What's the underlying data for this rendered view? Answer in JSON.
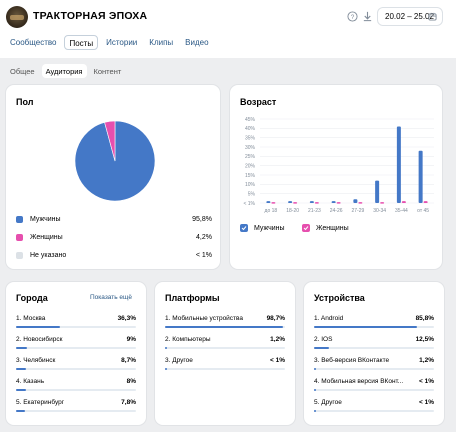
{
  "header": {
    "title": "ТРАКТОРНАЯ ЭПОХА",
    "date_range": "20.02 – 25.02",
    "icons": [
      "help-icon",
      "download-icon",
      "calendar-icon"
    ]
  },
  "tabs": [
    {
      "label": "Сообщество",
      "active": false
    },
    {
      "label": "Посты",
      "active": true
    },
    {
      "label": "Истории",
      "active": false
    },
    {
      "label": "Клипы",
      "active": false
    },
    {
      "label": "Видео",
      "active": false
    }
  ],
  "subtabs": [
    {
      "label": "Общее",
      "active": false
    },
    {
      "label": "Аудитория",
      "active": true
    },
    {
      "label": "Контент",
      "active": false
    }
  ],
  "gender": {
    "title": "Пол",
    "items": [
      {
        "label": "Мужчины",
        "value": "95,8%",
        "color": "#4478c7"
      },
      {
        "label": "Женщины",
        "value": "4,2%",
        "color": "#e64fae"
      },
      {
        "label": "Не указано",
        "value": "< 1%",
        "color": "#dce1e6"
      }
    ]
  },
  "age": {
    "title": "Возраст",
    "legend": [
      {
        "label": "Мужчины",
        "color": "#4478c7"
      },
      {
        "label": "Женщины",
        "color": "#e64fae"
      }
    ]
  },
  "chart_data": {
    "type": "bar",
    "categories": [
      "до 18",
      "18-20",
      "21-23",
      "24-26",
      "27-29",
      "30-34",
      "35-44",
      "от 45"
    ],
    "series": [
      {
        "name": "Мужчины",
        "values": [
          1,
          1,
          1,
          1,
          2,
          12,
          41,
          28
        ]
      },
      {
        "name": "Женщины",
        "values": [
          0.5,
          0.5,
          0.5,
          0.5,
          0.5,
          0.5,
          1,
          1
        ]
      }
    ],
    "y_ticks": [
      "45%",
      "40%",
      "35%",
      "30%",
      "25%",
      "20%",
      "15%",
      "10%",
      "5%",
      "< 1%"
    ],
    "ylim": [
      0,
      45
    ],
    "grid": true
  },
  "cities": {
    "title": "Города",
    "show_more": "Показать ещё",
    "items": [
      {
        "label": "1. Москва",
        "value": "36,3%",
        "pct": 36.3
      },
      {
        "label": "2. Новосибирск",
        "value": "9%",
        "pct": 9
      },
      {
        "label": "3. Челябинск",
        "value": "8,7%",
        "pct": 8.7
      },
      {
        "label": "4. Казань",
        "value": "8%",
        "pct": 8
      },
      {
        "label": "5. Екатеринбург",
        "value": "7,8%",
        "pct": 7.8
      }
    ]
  },
  "platforms": {
    "title": "Платформы",
    "items": [
      {
        "label": "1. Мобильные устройства",
        "value": "98,7%",
        "pct": 98.7
      },
      {
        "label": "2. Компьютеры",
        "value": "1,2%",
        "pct": 1.2
      },
      {
        "label": "3. Другое",
        "value": "< 1%",
        "pct": 0.5
      }
    ]
  },
  "devices": {
    "title": "Устройства",
    "items": [
      {
        "label": "1. Android",
        "value": "85,8%",
        "pct": 85.8
      },
      {
        "label": "2. IOS",
        "value": "12,5%",
        "pct": 12.5
      },
      {
        "label": "3. Веб-версия ВКонтакте",
        "value": "1,2%",
        "pct": 1.2
      },
      {
        "label": "4. Мобильная версия ВКонт...",
        "value": "< 1%",
        "pct": 0.5
      },
      {
        "label": "5. Другое",
        "value": "< 1%",
        "pct": 0.5
      }
    ]
  }
}
